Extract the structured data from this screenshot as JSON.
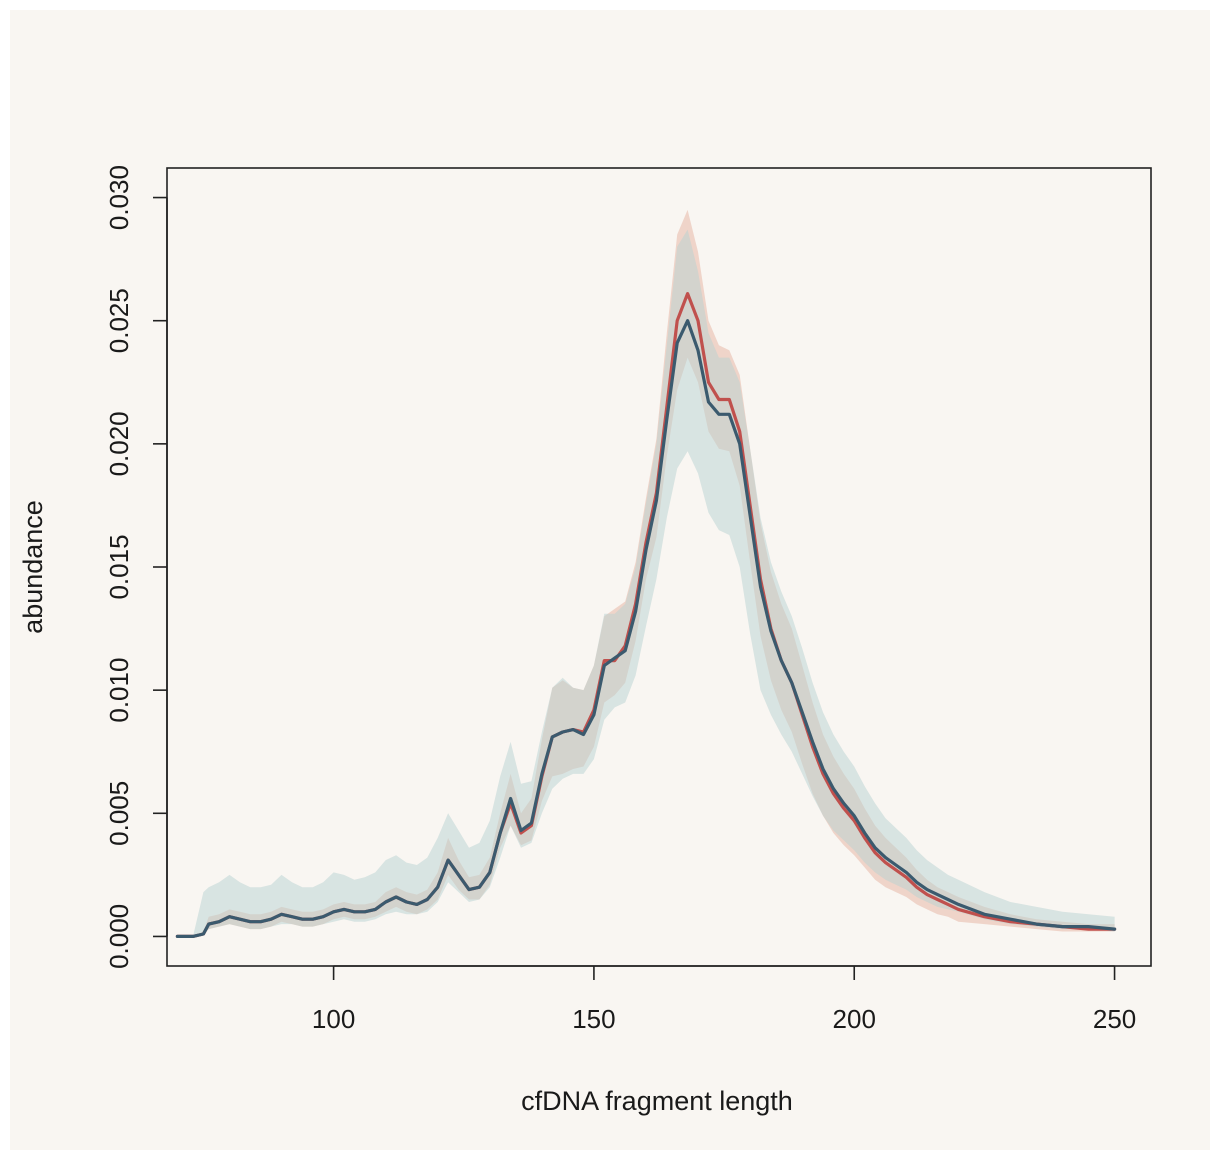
{
  "chart_data": {
    "type": "line",
    "title": "",
    "xlabel": "cfDNA fragment length",
    "ylabel": "abundance",
    "xlim": [
      68,
      257
    ],
    "ylim": [
      -0.0012,
      0.0312
    ],
    "x_ticks": [
      100,
      150,
      200,
      250
    ],
    "y_ticks": [
      0.0,
      0.005,
      0.01,
      0.015,
      0.02,
      0.025,
      0.03
    ],
    "x_tick_labels": [
      "100",
      "150",
      "200",
      "250"
    ],
    "y_tick_labels": [
      "0.000",
      "0.005",
      "0.010",
      "0.015",
      "0.020",
      "0.025",
      "0.030"
    ],
    "grid": false,
    "legend": "none",
    "x": [
      70,
      73,
      75,
      76,
      78,
      80,
      82,
      84,
      86,
      88,
      90,
      92,
      94,
      96,
      98,
      100,
      102,
      104,
      106,
      108,
      110,
      112,
      114,
      116,
      118,
      120,
      122,
      124,
      126,
      128,
      130,
      132,
      134,
      136,
      138,
      140,
      142,
      144,
      146,
      148,
      150,
      152,
      154,
      156,
      158,
      160,
      162,
      164,
      166,
      168,
      170,
      172,
      174,
      176,
      178,
      180,
      182,
      184,
      186,
      188,
      190,
      192,
      194,
      196,
      198,
      200,
      202,
      204,
      206,
      208,
      210,
      212,
      214,
      216,
      218,
      220,
      225,
      230,
      235,
      240,
      245,
      250
    ],
    "series": [
      {
        "color": "#c0504d",
        "band_color": "#e8b8a8",
        "values": [
          0.0,
          0.0,
          0.0001,
          0.0005,
          0.0006,
          0.0008,
          0.0007,
          0.0006,
          0.0006,
          0.0007,
          0.0009,
          0.0008,
          0.0007,
          0.0007,
          0.0008,
          0.001,
          0.0011,
          0.001,
          0.001,
          0.0011,
          0.0014,
          0.0016,
          0.0014,
          0.0013,
          0.0015,
          0.002,
          0.0031,
          0.0025,
          0.0019,
          0.002,
          0.0026,
          0.0042,
          0.0054,
          0.0042,
          0.0045,
          0.0065,
          0.0081,
          0.0083,
          0.0084,
          0.0083,
          0.0092,
          0.0112,
          0.0112,
          0.0118,
          0.0135,
          0.016,
          0.018,
          0.0215,
          0.025,
          0.0261,
          0.025,
          0.0225,
          0.0218,
          0.0218,
          0.0205,
          0.0175,
          0.0145,
          0.0125,
          0.0112,
          0.0103,
          0.009,
          0.0077,
          0.0066,
          0.0058,
          0.0052,
          0.0047,
          0.004,
          0.0034,
          0.003,
          0.0027,
          0.0024,
          0.002,
          0.0017,
          0.0015,
          0.0013,
          0.0011,
          0.0008,
          0.0006,
          0.0005,
          0.0004,
          0.0003,
          0.0003
        ],
        "lower": [
          0.0,
          0.0,
          0.0001,
          0.0003,
          0.0004,
          0.0005,
          0.0004,
          0.0003,
          0.0003,
          0.0004,
          0.0006,
          0.0005,
          0.0004,
          0.0004,
          0.0005,
          0.0007,
          0.0008,
          0.0007,
          0.0007,
          0.0008,
          0.001,
          0.0012,
          0.001,
          0.0009,
          0.0011,
          0.0015,
          0.0025,
          0.0019,
          0.0015,
          0.0015,
          0.0021,
          0.0036,
          0.0045,
          0.0037,
          0.0039,
          0.0055,
          0.0065,
          0.0066,
          0.0068,
          0.0069,
          0.0077,
          0.0095,
          0.0098,
          0.0103,
          0.012,
          0.0145,
          0.0162,
          0.0195,
          0.0222,
          0.0235,
          0.0225,
          0.0205,
          0.0198,
          0.0197,
          0.0183,
          0.0152,
          0.0122,
          0.0104,
          0.0092,
          0.0083,
          0.007,
          0.0058,
          0.0049,
          0.0042,
          0.0037,
          0.0033,
          0.0028,
          0.0023,
          0.002,
          0.0018,
          0.0016,
          0.0013,
          0.0011,
          0.0009,
          0.0008,
          0.0006,
          0.0005,
          0.0004,
          0.0003,
          0.0002,
          0.0002,
          0.0002
        ],
        "upper": [
          0.0,
          0.0,
          0.0002,
          0.0008,
          0.0009,
          0.0011,
          0.001,
          0.0009,
          0.0009,
          0.001,
          0.0012,
          0.0011,
          0.001,
          0.001,
          0.0011,
          0.0013,
          0.0014,
          0.0013,
          0.0013,
          0.0014,
          0.0018,
          0.002,
          0.0018,
          0.0017,
          0.0019,
          0.0026,
          0.004,
          0.0031,
          0.0024,
          0.0025,
          0.0032,
          0.005,
          0.0066,
          0.005,
          0.0056,
          0.008,
          0.0101,
          0.0104,
          0.0101,
          0.01,
          0.011,
          0.013,
          0.0133,
          0.0136,
          0.0152,
          0.0178,
          0.0202,
          0.0245,
          0.0285,
          0.0295,
          0.0278,
          0.025,
          0.024,
          0.0238,
          0.0228,
          0.0198,
          0.0168,
          0.0148,
          0.0135,
          0.0125,
          0.011,
          0.0095,
          0.0082,
          0.0073,
          0.0066,
          0.006,
          0.0052,
          0.0045,
          0.004,
          0.0036,
          0.0032,
          0.0027,
          0.0023,
          0.002,
          0.0018,
          0.0016,
          0.0012,
          0.0009,
          0.0007,
          0.0006,
          0.0005,
          0.0005
        ]
      },
      {
        "color": "#3b5a6e",
        "band_color": "#b8d2d2",
        "values": [
          0.0,
          0.0,
          0.0001,
          0.0005,
          0.0006,
          0.0008,
          0.0007,
          0.0006,
          0.0006,
          0.0007,
          0.0009,
          0.0008,
          0.0007,
          0.0007,
          0.0008,
          0.001,
          0.0011,
          0.001,
          0.001,
          0.0011,
          0.0014,
          0.0016,
          0.0014,
          0.0013,
          0.0015,
          0.002,
          0.0031,
          0.0025,
          0.0019,
          0.002,
          0.0026,
          0.0042,
          0.0056,
          0.0043,
          0.0046,
          0.0066,
          0.0081,
          0.0083,
          0.0084,
          0.0082,
          0.009,
          0.011,
          0.0113,
          0.0116,
          0.0132,
          0.0157,
          0.0177,
          0.021,
          0.0241,
          0.025,
          0.0238,
          0.0217,
          0.0212,
          0.0212,
          0.02,
          0.0171,
          0.0142,
          0.0124,
          0.0112,
          0.0103,
          0.0091,
          0.0079,
          0.0068,
          0.006,
          0.0054,
          0.0049,
          0.0042,
          0.0036,
          0.0032,
          0.0029,
          0.0026,
          0.0022,
          0.0019,
          0.0017,
          0.0015,
          0.0013,
          0.0009,
          0.0007,
          0.0005,
          0.0004,
          0.0004,
          0.0003
        ],
        "lower": [
          0.0,
          0.0,
          0.0001,
          0.0003,
          0.0004,
          0.0005,
          0.0004,
          0.0003,
          0.0003,
          0.0004,
          0.0005,
          0.0005,
          0.0004,
          0.0004,
          0.0005,
          0.0006,
          0.0007,
          0.0006,
          0.0006,
          0.0007,
          0.0009,
          0.001,
          0.0009,
          0.0009,
          0.001,
          0.0014,
          0.0022,
          0.0018,
          0.0014,
          0.0015,
          0.002,
          0.0032,
          0.0045,
          0.0036,
          0.0038,
          0.005,
          0.006,
          0.0064,
          0.0066,
          0.0066,
          0.0072,
          0.0088,
          0.0093,
          0.0095,
          0.0106,
          0.0126,
          0.0145,
          0.017,
          0.019,
          0.0197,
          0.0188,
          0.0172,
          0.0165,
          0.0163,
          0.015,
          0.0123,
          0.01,
          0.009,
          0.0082,
          0.0075,
          0.0066,
          0.0057,
          0.0049,
          0.0043,
          0.0039,
          0.0035,
          0.003,
          0.0026,
          0.0023,
          0.0021,
          0.0019,
          0.0016,
          0.0014,
          0.0012,
          0.0011,
          0.001,
          0.0007,
          0.0005,
          0.0004,
          0.0003,
          0.0003,
          0.0002
        ],
        "upper": [
          0.0,
          0.0,
          0.0018,
          0.002,
          0.0022,
          0.0025,
          0.0022,
          0.002,
          0.002,
          0.0021,
          0.0025,
          0.0022,
          0.002,
          0.002,
          0.0022,
          0.0026,
          0.0025,
          0.0023,
          0.0024,
          0.0026,
          0.0031,
          0.0033,
          0.003,
          0.0029,
          0.0032,
          0.004,
          0.005,
          0.0043,
          0.0036,
          0.0038,
          0.0047,
          0.0065,
          0.0079,
          0.0062,
          0.0063,
          0.0083,
          0.0101,
          0.0105,
          0.0101,
          0.01,
          0.011,
          0.0131,
          0.0131,
          0.0135,
          0.015,
          0.0176,
          0.02,
          0.024,
          0.028,
          0.0287,
          0.027,
          0.0245,
          0.0235,
          0.0235,
          0.0225,
          0.0198,
          0.017,
          0.0152,
          0.014,
          0.013,
          0.0117,
          0.0103,
          0.0091,
          0.0082,
          0.0075,
          0.0069,
          0.0061,
          0.0054,
          0.0048,
          0.0044,
          0.004,
          0.0035,
          0.0031,
          0.0028,
          0.0025,
          0.0023,
          0.0018,
          0.0014,
          0.0012,
          0.001,
          0.0009,
          0.0008
        ]
      }
    ]
  }
}
